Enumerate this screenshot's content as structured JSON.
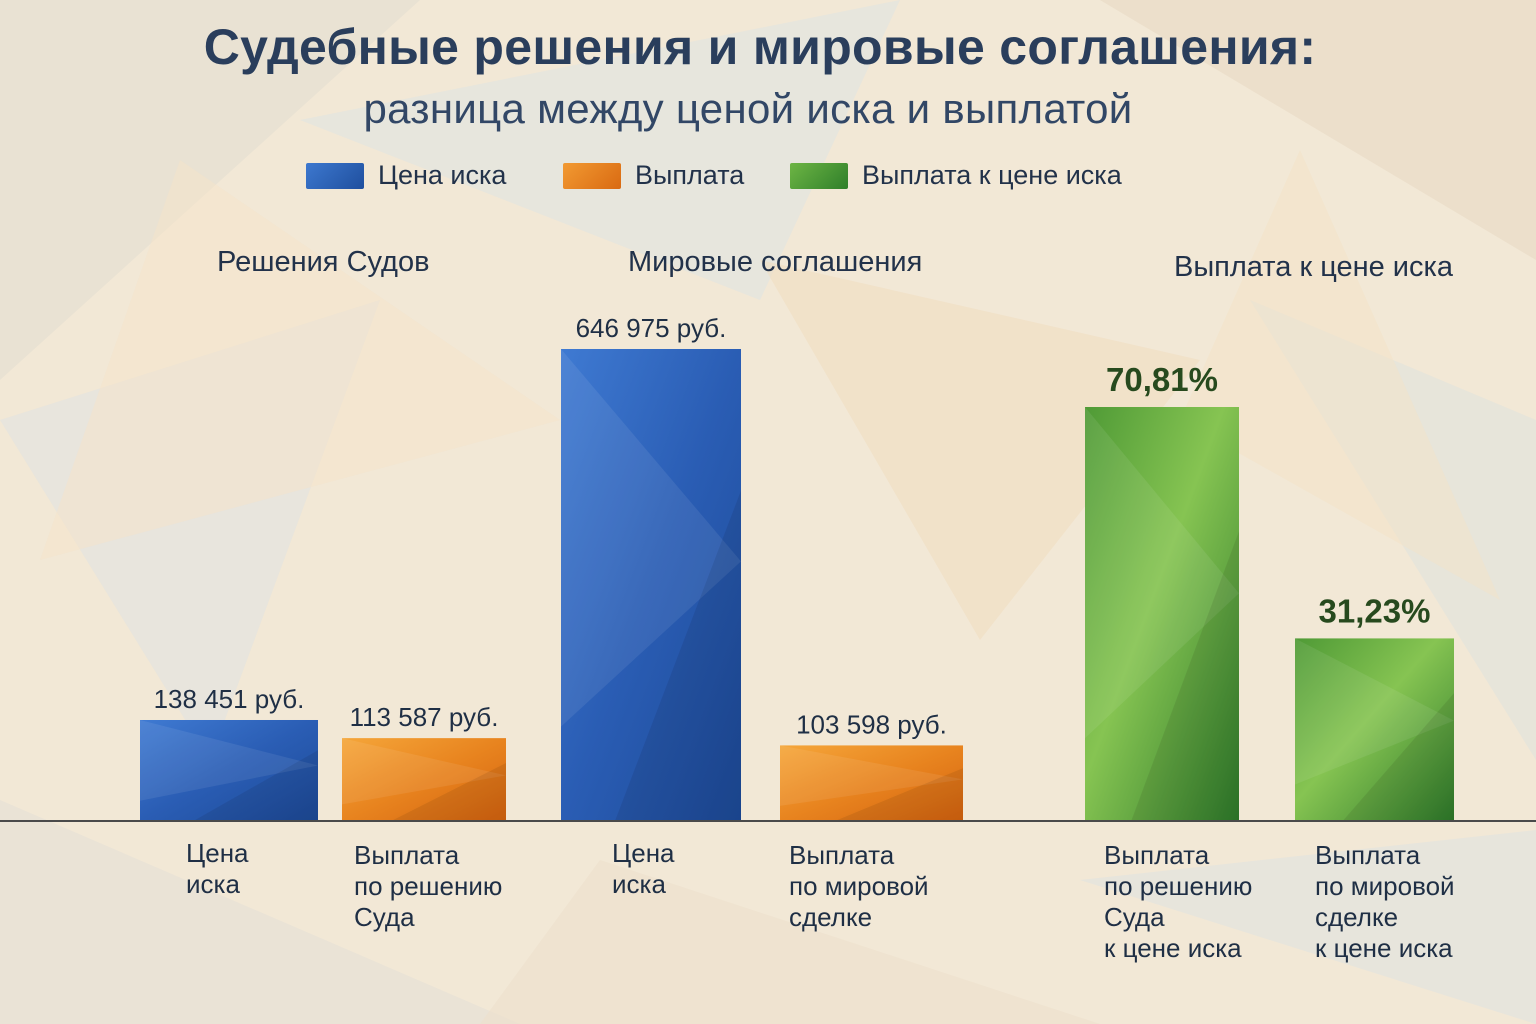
{
  "chart_data": {
    "type": "bar",
    "title": "Судебные решения и мировые соглашения:",
    "subtitle": "разница между ценой иска и выплатой",
    "legend": [
      {
        "name": "Цена иска",
        "color": "#2d62b8"
      },
      {
        "name": "Выплата",
        "color": "#e8801e"
      },
      {
        "name": "Выплата к цене иска",
        "color": "#4f9a36"
      }
    ],
    "groups": [
      {
        "label": "Решения Судов"
      },
      {
        "label": "Мировые соглашения"
      },
      {
        "label": "Выплата к цене иска"
      }
    ],
    "bars": [
      {
        "category": "Цена\nиска",
        "value": 138451,
        "value_label": "138 451 руб.",
        "series": "Цена иска",
        "color": "#2d62b8"
      },
      {
        "category": "Выплата\nпо решению\nСуда",
        "value": 113587,
        "value_label": "113 587 руб.",
        "series": "Выплата",
        "color": "#e8801e"
      },
      {
        "category": "Цена\nиска",
        "value": 646975,
        "value_label": "646 975 руб.",
        "series": "Цена иска",
        "color": "#2d62b8"
      },
      {
        "category": "Выплата\nпо мировой\nсделке",
        "value": 103598,
        "value_label": "103 598 руб.",
        "series": "Выплата",
        "color": "#e8801e"
      },
      {
        "category": "Выплата\nпо решению\nСуда\nк цене иска",
        "value": 70.81,
        "value_label": "70,81%",
        "series": "Выплата к цене иска",
        "color": "#4f9a36"
      },
      {
        "category": "Выплата\nпо мировой\nсделке\nк цене иска",
        "value": 31.23,
        "value_label": "31,23%",
        "series": "Выплата к цене иска",
        "color": "#4f9a36"
      }
    ],
    "grid": false,
    "legend_position": "top-center"
  }
}
